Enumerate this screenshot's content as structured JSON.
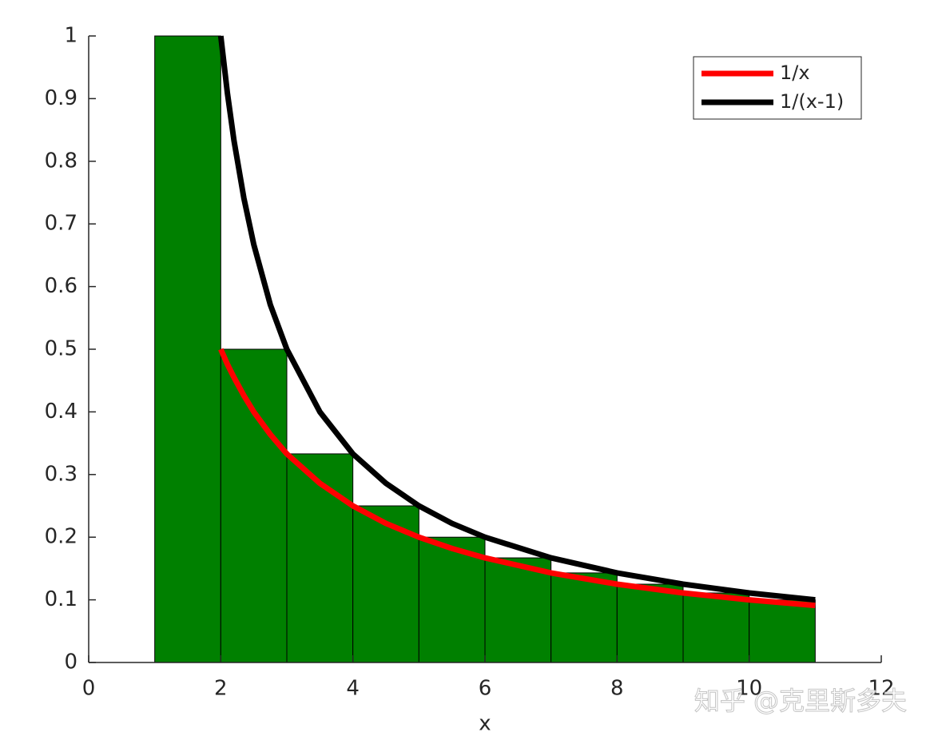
{
  "chart_data": {
    "type": "histogram",
    "bins": [
      1,
      2,
      3,
      4,
      5,
      6,
      7,
      8,
      9,
      10,
      11
    ],
    "values": [
      1,
      0.5,
      0.333,
      0.25,
      0.2,
      0.167,
      0.143,
      0.125,
      0.111,
      0.1
    ],
    "color": "#008000",
    "series": [
      {
        "name": "1/x",
        "color": "#ff0000",
        "x": [
          2,
          2.1,
          2.2,
          2.35,
          2.5,
          2.75,
          3,
          3.5,
          4,
          4.5,
          5,
          5.5,
          6,
          7,
          8,
          9,
          10,
          11
        ],
        "values": [
          0.5,
          0.476,
          0.455,
          0.426,
          0.4,
          0.364,
          0.333,
          0.286,
          0.25,
          0.222,
          0.2,
          0.182,
          0.167,
          0.143,
          0.125,
          0.111,
          0.1,
          0.091
        ]
      },
      {
        "name": "1/(x-1)",
        "color": "#000000",
        "x": [
          2,
          2.1,
          2.2,
          2.35,
          2.5,
          2.75,
          3,
          3.5,
          4,
          4.5,
          5,
          5.5,
          6,
          7,
          8,
          9,
          10,
          11
        ],
        "values": [
          1,
          0.909,
          0.833,
          0.741,
          0.667,
          0.571,
          0.5,
          0.4,
          0.333,
          0.286,
          0.25,
          0.222,
          0.2,
          0.167,
          0.143,
          0.125,
          0.111,
          0.1
        ]
      }
    ],
    "x_label": "x",
    "xlim": [
      0,
      12
    ],
    "xticks": [
      0,
      2,
      4,
      6,
      8,
      10,
      12
    ],
    "ylim": [
      0,
      1
    ],
    "yticks": [
      0,
      0.1,
      0.2,
      0.3,
      0.4,
      0.5,
      0.6,
      0.7,
      0.8,
      0.9,
      1
    ],
    "legend": "northeast",
    "watermark": "知乎 @克里斯多夫"
  }
}
